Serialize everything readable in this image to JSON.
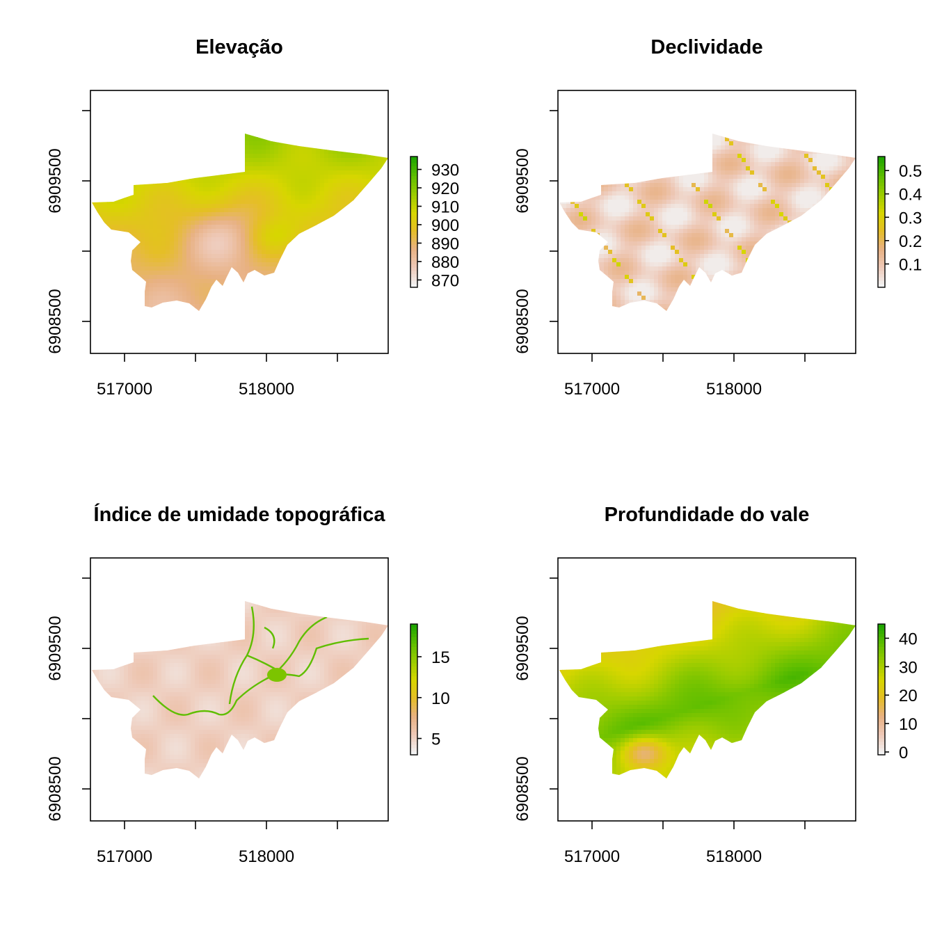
{
  "panels": [
    {
      "title": "Elevação",
      "x_ticks": [
        "517000",
        "518000"
      ],
      "y_ticks": [
        "6908500",
        "6909500"
      ],
      "legend": {
        "ticks": [
          "930",
          "920",
          "910",
          "900",
          "890",
          "880",
          "870"
        ],
        "min": 866,
        "max": 937
      },
      "field": "elevation"
    },
    {
      "title": "Declividade",
      "x_ticks": [
        "517000",
        "518000"
      ],
      "y_ticks": [
        "6908500",
        "6909500"
      ],
      "legend": {
        "ticks": [
          "0.5",
          "0.4",
          "0.3",
          "0.2",
          "0.1"
        ],
        "min": 0,
        "max": 0.56
      },
      "field": "slope"
    },
    {
      "title": "Índice de umidade topográfica",
      "x_ticks": [
        "517000",
        "518000"
      ],
      "y_ticks": [
        "6908500",
        "6909500"
      ],
      "legend": {
        "ticks": [
          "15",
          "10",
          "5"
        ],
        "min": 3,
        "max": 19
      },
      "field": "twi"
    },
    {
      "title": "Profundidade do vale",
      "x_ticks": [
        "517000",
        "518000"
      ],
      "y_ticks": [
        "6908500",
        "6909500"
      ],
      "legend": {
        "ticks": [
          "40",
          "30",
          "20",
          "10",
          "0"
        ],
        "min": -1,
        "max": 45
      },
      "field": "valley"
    }
  ],
  "colors": {
    "palette": [
      "#f2f2f2",
      "#eec9b8",
      "#e8b183",
      "#e5be27",
      "#d7d600",
      "#9ccc00",
      "#5fbe00",
      "#1fa500"
    ]
  }
}
